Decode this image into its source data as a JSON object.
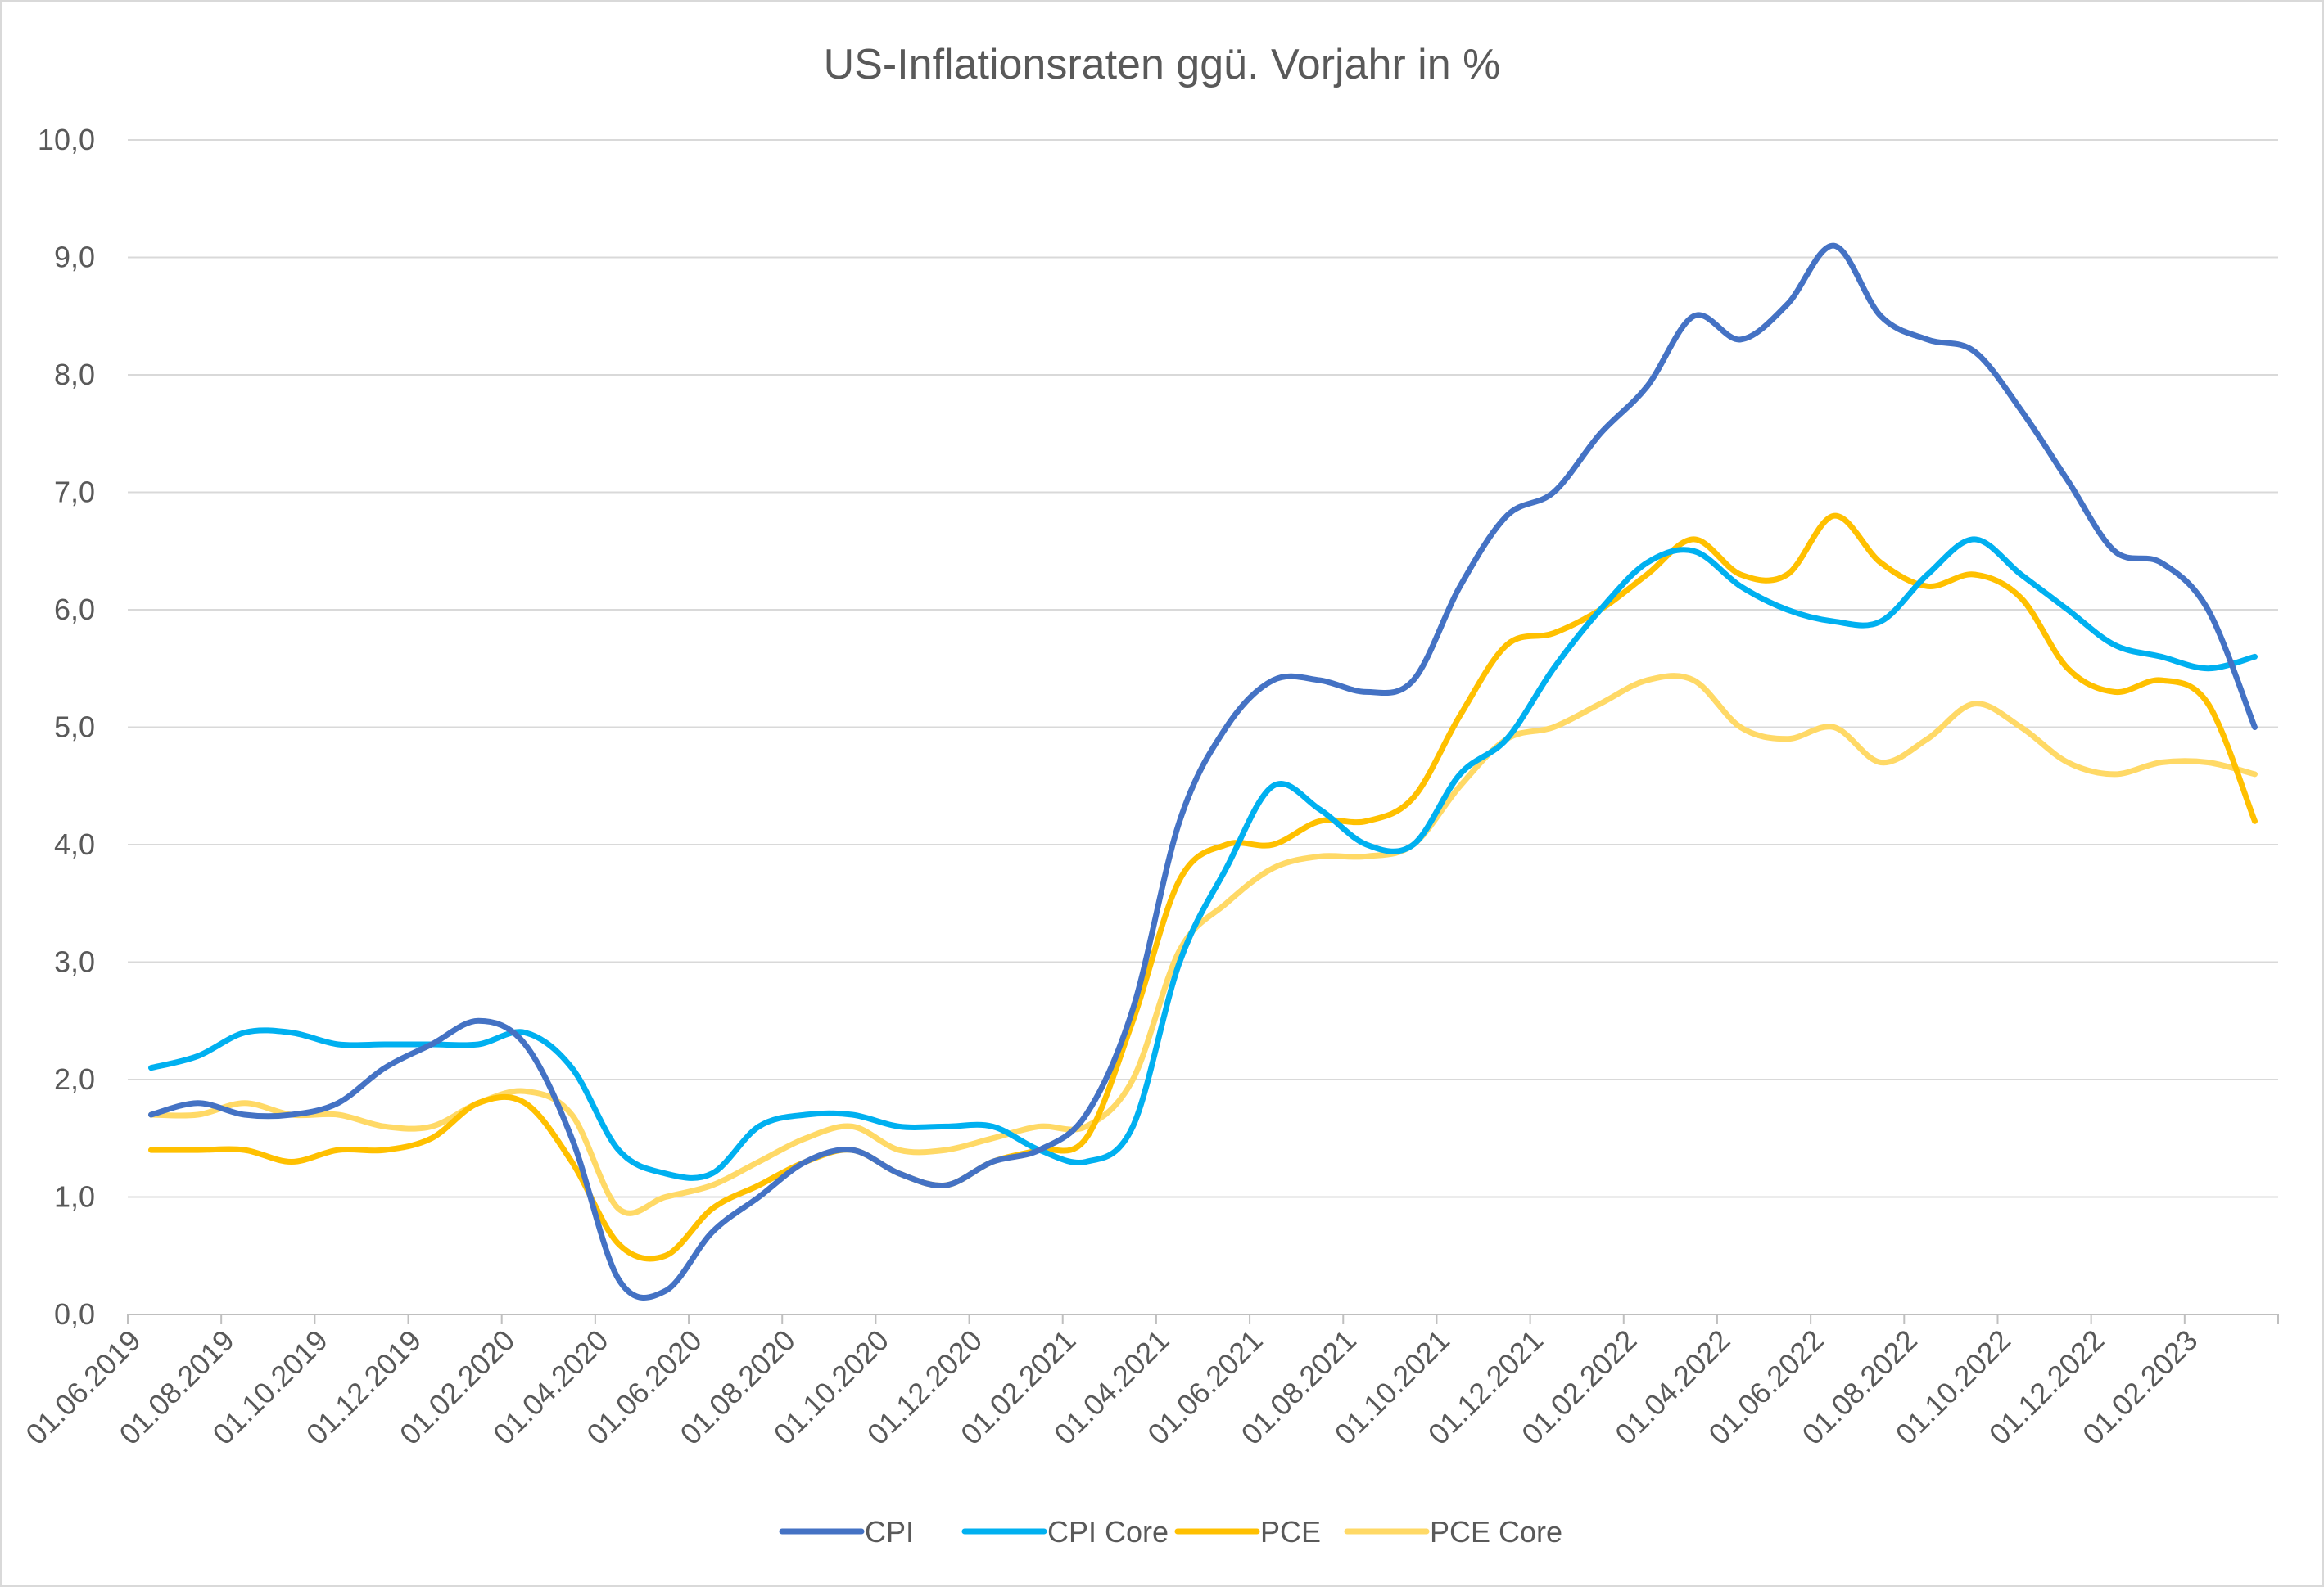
{
  "chart_data": {
    "type": "line",
    "title": "US-Inflationsraten ggü. Vorjahr in %",
    "x": [
      "06.2019",
      "07.2019",
      "08.2019",
      "09.2019",
      "10.2019",
      "11.2019",
      "12.2019",
      "01.2020",
      "02.2020",
      "03.2020",
      "04.2020",
      "05.2020",
      "06.2020",
      "07.2020",
      "08.2020",
      "09.2020",
      "10.2020",
      "11.2020",
      "12.2020",
      "01.2021",
      "02.2021",
      "03.2021",
      "04.2021",
      "05.2021",
      "06.2021",
      "07.2021",
      "08.2021",
      "09.2021",
      "10.2021",
      "11.2021",
      "12.2021",
      "01.2022",
      "02.2022",
      "03.2022",
      "04.2022",
      "05.2022",
      "06.2022",
      "07.2022",
      "08.2022",
      "09.2022",
      "10.2022",
      "11.2022",
      "12.2022",
      "01.2023",
      "02.2023",
      "03.2023"
    ],
    "x_tick_labels": [
      "01.06.2019",
      "01.08.2019",
      "01.10.2019",
      "01.12.2019",
      "01.02.2020",
      "01.04.2020",
      "01.06.2020",
      "01.08.2020",
      "01.10.2020",
      "01.12.2020",
      "01.02.2021",
      "01.04.2021",
      "01.06.2021",
      "01.08.2021",
      "01.10.2021",
      "01.12.2021",
      "01.02.2022",
      "01.04.2022",
      "01.06.2022",
      "01.08.2022",
      "01.10.2022",
      "01.12.2022",
      "01.02.2023"
    ],
    "y_tick_labels": [
      "0,0",
      "1,0",
      "2,0",
      "3,0",
      "4,0",
      "5,0",
      "6,0",
      "7,0",
      "8,0",
      "9,0",
      "10,0"
    ],
    "ylim": [
      0,
      10
    ],
    "grid": true,
    "legend_position": "bottom",
    "series": [
      {
        "name": "CPI",
        "color": "#4472C4",
        "values": [
          1.7,
          1.8,
          1.7,
          1.7,
          1.8,
          2.1,
          2.3,
          2.5,
          2.3,
          1.5,
          0.3,
          0.2,
          0.7,
          1.0,
          1.3,
          1.4,
          1.2,
          1.1,
          1.3,
          1.4,
          1.7,
          2.6,
          4.2,
          5.0,
          5.4,
          5.4,
          5.3,
          5.4,
          6.2,
          6.8,
          7.0,
          7.5,
          7.9,
          8.5,
          8.3,
          8.6,
          9.1,
          8.5,
          8.3,
          8.2,
          7.7,
          7.1,
          6.5,
          6.4,
          6.0,
          5.0
        ]
      },
      {
        "name": "CPI Core",
        "color": "#00B0F0",
        "values": [
          2.1,
          2.2,
          2.4,
          2.4,
          2.3,
          2.3,
          2.3,
          2.3,
          2.4,
          2.1,
          1.4,
          1.2,
          1.2,
          1.6,
          1.7,
          1.7,
          1.6,
          1.6,
          1.6,
          1.4,
          1.3,
          1.6,
          3.0,
          3.8,
          4.5,
          4.3,
          4.0,
          4.0,
          4.6,
          4.9,
          5.5,
          6.0,
          6.4,
          6.5,
          6.2,
          6.0,
          5.9,
          5.9,
          6.3,
          6.6,
          6.3,
          6.0,
          5.7,
          5.6,
          5.5,
          5.6
        ]
      },
      {
        "name": "PCE",
        "color": "#FFC000",
        "values": [
          1.4,
          1.4,
          1.4,
          1.3,
          1.4,
          1.4,
          1.5,
          1.8,
          1.8,
          1.3,
          0.6,
          0.5,
          0.9,
          1.1,
          1.3,
          1.4,
          1.2,
          1.1,
          1.3,
          1.4,
          1.5,
          2.5,
          3.7,
          4.0,
          4.0,
          4.2,
          4.2,
          4.4,
          5.1,
          5.7,
          5.8,
          6.0,
          6.3,
          6.6,
          6.3,
          6.3,
          6.8,
          6.4,
          6.2,
          6.3,
          6.1,
          5.5,
          5.3,
          5.4,
          5.2,
          4.2
        ]
      },
      {
        "name": "PCE Core",
        "color": "#FFD966",
        "values": [
          1.7,
          1.7,
          1.8,
          1.7,
          1.7,
          1.6,
          1.6,
          1.8,
          1.9,
          1.7,
          0.9,
          1.0,
          1.1,
          1.3,
          1.5,
          1.6,
          1.4,
          1.4,
          1.5,
          1.6,
          1.6,
          2.0,
          3.1,
          3.5,
          3.8,
          3.9,
          3.9,
          4.0,
          4.5,
          4.9,
          5.0,
          5.2,
          5.4,
          5.4,
          5.0,
          4.9,
          5.0,
          4.7,
          4.9,
          5.2,
          5.0,
          4.7,
          4.6,
          4.7,
          4.7,
          4.6
        ]
      }
    ]
  }
}
